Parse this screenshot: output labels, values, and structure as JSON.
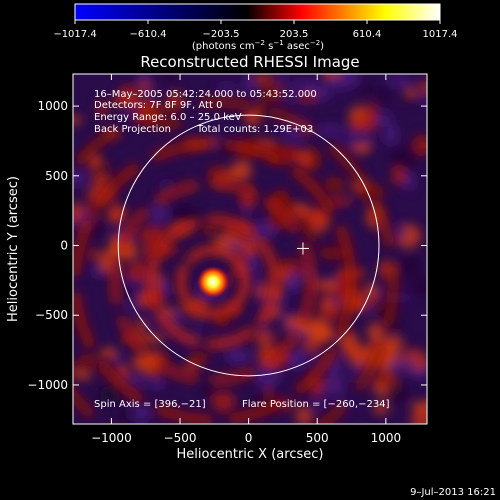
{
  "chart_data": {
    "type": "heatmap",
    "title": "Reconstructed RHESSI Image",
    "xlabel": "Heliocentric X (arcsec)",
    "ylabel": "Heliocentric Y (arcsec)",
    "xlim": [
      -1280,
      1300
    ],
    "ylim": [
      -1280,
      1230
    ],
    "xticks": [
      -1000,
      -500,
      0,
      500,
      1000
    ],
    "yticks": [
      -1000,
      -500,
      0,
      500,
      1000
    ],
    "xtick_labels": [
      "−1000",
      "−500",
      "0",
      "500",
      "1000"
    ],
    "ytick_labels": [
      "−1000",
      "−500",
      "0",
      "500",
      "1000"
    ],
    "colorbar": {
      "range": [
        -1017.4,
        1017.4
      ],
      "ticks": [
        -1017.4,
        -610.4,
        -203.5,
        203.5,
        610.4,
        1017.4
      ],
      "tick_labels": [
        "−1017.4",
        "−610.4",
        "−203.5",
        "203.5",
        "610.4",
        "1017.4"
      ],
      "unit_main": "(photons cm",
      "unit_exp1": "−2",
      "unit_mid": " s",
      "unit_exp2": "−1",
      "unit_mid2": " asec",
      "unit_exp3": "−2",
      "unit_end": ")",
      "colors": [
        "#0000ff",
        "#000000",
        "#ff0000",
        "#ffff00",
        "#ffffff"
      ]
    },
    "annotations": {
      "time_range": "16–May–2005 05:42:24.000 to 05:43:52.000",
      "detectors": "Detectors: 7F 8F 9F, Att 0",
      "energy": "Energy Range: 6.0 – 25.0 keV",
      "method": "Back Projection",
      "counts": "Total counts: 1.29E+03",
      "spin_axis": "Spin Axis = [396,−21]",
      "flare_position": "Flare Position = [−260,−234]"
    },
    "solar_disk": {
      "center": [
        0,
        0
      ],
      "radius_arcsec": 950
    },
    "spin_axis": [
      396,
      -21
    ],
    "flare_position": [
      -260,
      -234
    ],
    "timestamp": "9–Jul–2013 16:21"
  }
}
